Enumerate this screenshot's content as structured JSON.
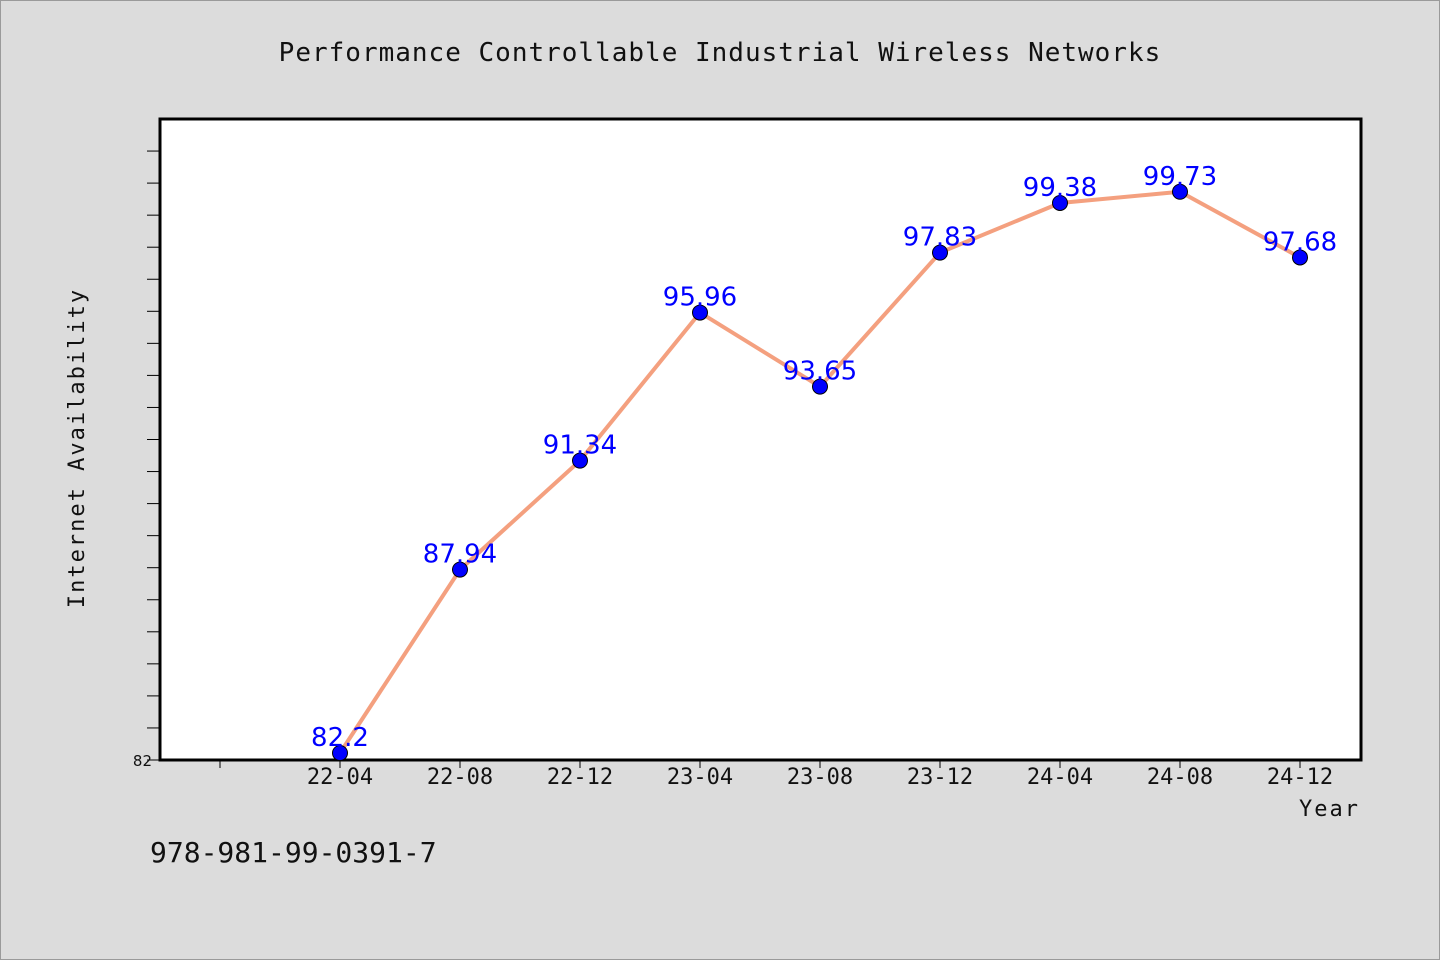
{
  "chart_data": {
    "type": "line",
    "title": "Performance Controllable Industrial Wireless Networks",
    "xlabel": "Year",
    "ylabel": "Internet Availability",
    "categories": [
      "22-04",
      "22-08",
      "22-12",
      "23-04",
      "23-08",
      "23-12",
      "24-04",
      "24-08",
      "24-12"
    ],
    "values": [
      82.2,
      87.94,
      91.34,
      95.96,
      93.65,
      97.83,
      99.38,
      99.73,
      97.68
    ],
    "data_labels": [
      "82.2",
      "87.94",
      "91.34",
      "95.96",
      "93.65",
      "97.83",
      "99.38",
      "99.73",
      "97.68"
    ],
    "ytick_labels": [
      "82"
    ],
    "ylim": [
      82,
      102
    ],
    "grid": false,
    "legend": "none",
    "line_color": "#f4a07f",
    "marker_color": "#0000ff",
    "label_color": "#0000ff",
    "plot_background": "#ffffff",
    "page_background": "#dcdcdc"
  },
  "footer": {
    "isbn": "978-981-99-0391-7"
  }
}
